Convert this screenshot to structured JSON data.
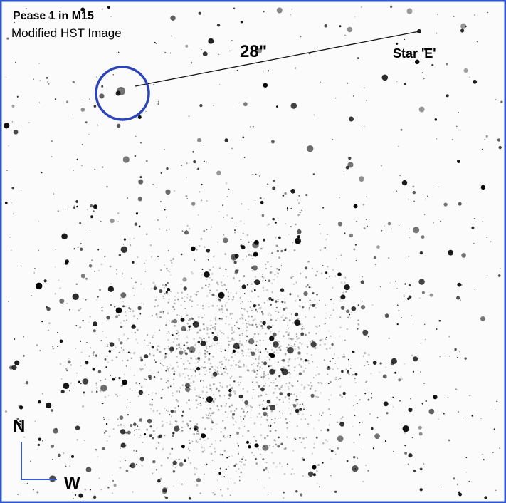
{
  "header": {
    "title": "Pease 1 in M15",
    "subtitle": "Modified HST Image"
  },
  "annotations": {
    "separation": "28\"",
    "star_label": "Star 'E'"
  },
  "compass": {
    "north": "N",
    "west": "W"
  }
}
